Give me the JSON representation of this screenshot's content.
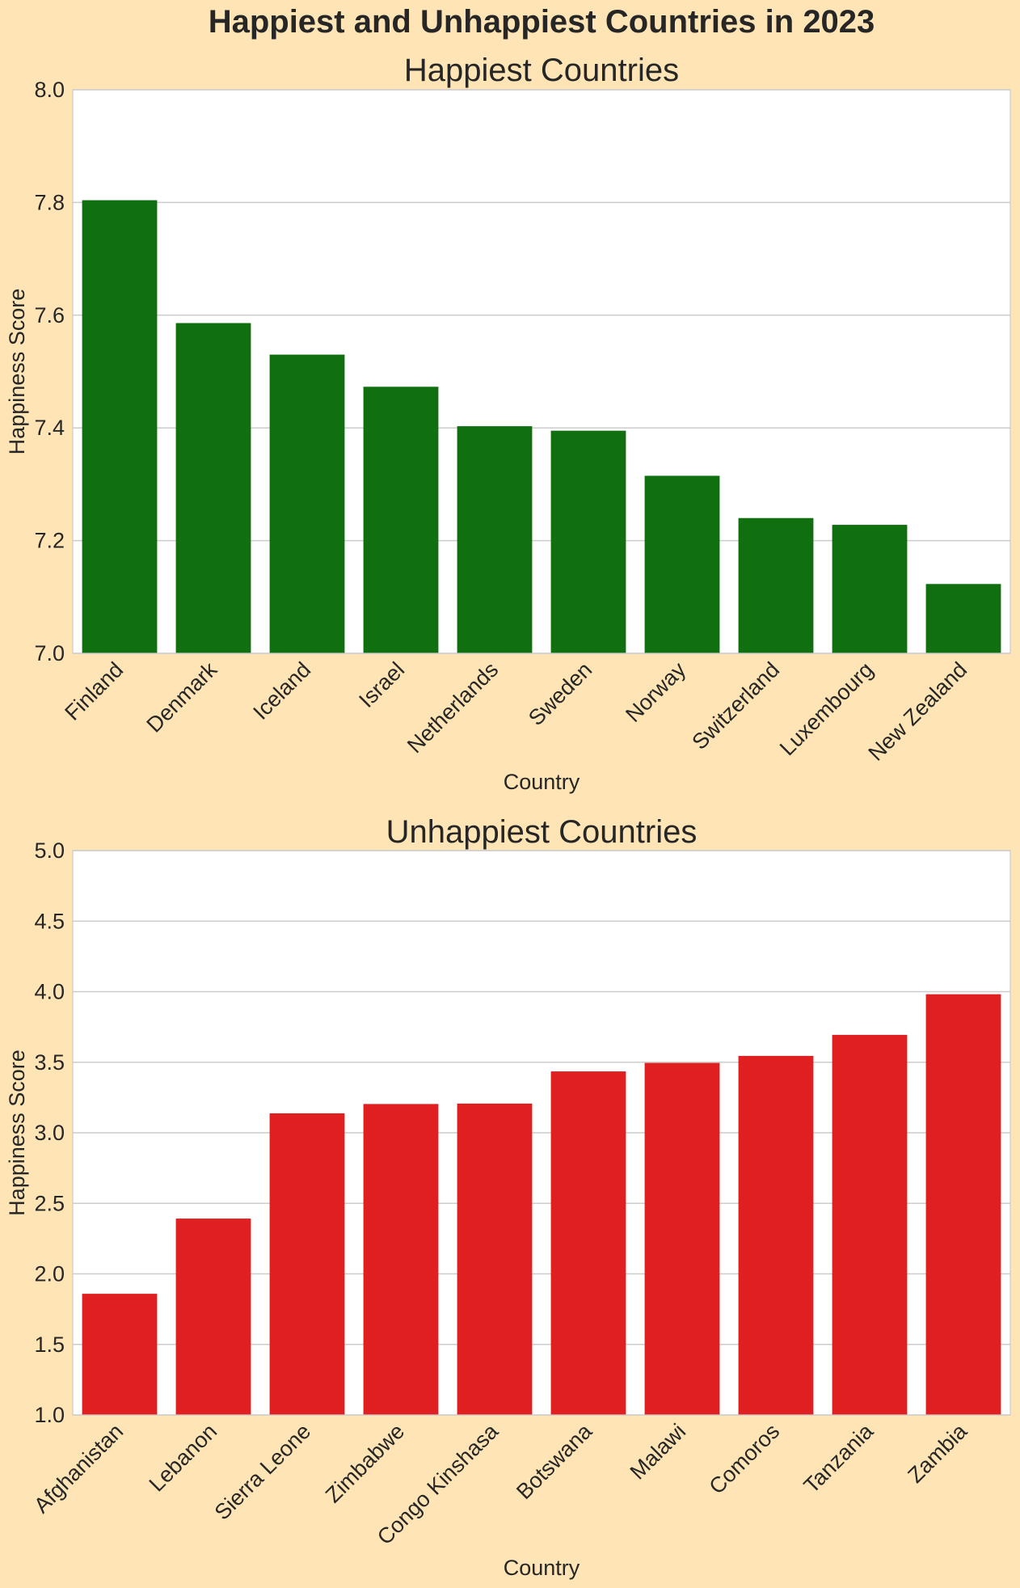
{
  "figure": {
    "suptitle": "Happiest and Unhappiest Countries in 2023",
    "background_color": "#ffe4b5"
  },
  "chart_data": [
    {
      "type": "bar",
      "title": "Happiest Countries",
      "xlabel": "Country",
      "ylabel": "Happiness Score",
      "categories": [
        "Finland",
        "Denmark",
        "Iceland",
        "Israel",
        "Netherlands",
        "Sweden",
        "Norway",
        "Switzerland",
        "Luxembourg",
        "New Zealand"
      ],
      "values": [
        7.804,
        7.586,
        7.53,
        7.473,
        7.403,
        7.395,
        7.315,
        7.24,
        7.228,
        7.123
      ],
      "ylim": [
        7.0,
        8.0
      ],
      "yticks": [
        "7.0",
        "7.2",
        "7.4",
        "7.6",
        "7.8",
        "8.0"
      ],
      "ytick_values": [
        7.0,
        7.2,
        7.4,
        7.6,
        7.8,
        8.0
      ],
      "bar_color": "#107010",
      "grid": true
    },
    {
      "type": "bar",
      "title": "Unhappiest Countries",
      "xlabel": "Country",
      "ylabel": "Happiness Score",
      "categories": [
        "Afghanistan",
        "Lebanon",
        "Sierra Leone",
        "Zimbabwe",
        "Congo Kinshasa",
        "Botswana",
        "Malawi",
        "Comoros",
        "Tanzania",
        "Zambia"
      ],
      "values": [
        1.859,
        2.392,
        3.138,
        3.204,
        3.207,
        3.435,
        3.495,
        3.545,
        3.694,
        3.982
      ],
      "ylim": [
        1.0,
        5.0
      ],
      "yticks": [
        "1.0",
        "1.5",
        "2.0",
        "2.5",
        "3.0",
        "3.5",
        "4.0",
        "4.5",
        "5.0"
      ],
      "ytick_values": [
        1.0,
        1.5,
        2.0,
        2.5,
        3.0,
        3.5,
        4.0,
        4.5,
        5.0
      ],
      "bar_color": "#e02020",
      "grid": true
    }
  ]
}
